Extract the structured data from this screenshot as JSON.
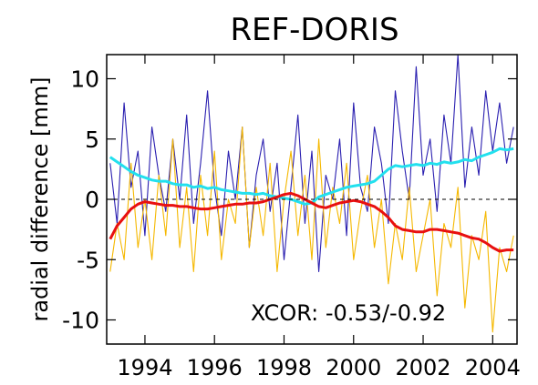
{
  "chart_data": {
    "type": "line",
    "title": "REF-DORIS",
    "ylabel": "radial difference [mm]",
    "annotation": "XCOR: -0.53/-0.92",
    "xlim": [
      1992.9,
      2004.7
    ],
    "xticks": [
      1994,
      1996,
      1998,
      2000,
      2002,
      2004
    ],
    "ylim": [
      -12,
      12
    ],
    "yticks": [
      -10,
      -5,
      0,
      5,
      10
    ],
    "reference_line": 0,
    "x": [
      1993.0,
      1993.2,
      1993.4,
      1993.6,
      1993.8,
      1994.0,
      1994.2,
      1994.4,
      1994.6,
      1994.8,
      1995.0,
      1995.2,
      1995.4,
      1995.6,
      1995.8,
      1996.0,
      1996.2,
      1996.4,
      1996.6,
      1996.8,
      1997.0,
      1997.2,
      1997.4,
      1997.6,
      1997.8,
      1998.0,
      1998.2,
      1998.4,
      1998.6,
      1998.8,
      1999.0,
      1999.2,
      1999.4,
      1999.6,
      1999.8,
      2000.0,
      2000.2,
      2000.4,
      2000.6,
      2000.8,
      2001.0,
      2001.2,
      2001.4,
      2001.6,
      2001.8,
      2002.0,
      2002.2,
      2002.4,
      2002.6,
      2002.8,
      2003.0,
      2003.2,
      2003.4,
      2003.6,
      2003.8,
      2004.0,
      2004.2,
      2004.4,
      2004.6
    ],
    "series": [
      {
        "color": "#2a1fb0",
        "values": [
          3,
          -2,
          8,
          1,
          4,
          -3,
          6,
          2,
          -1,
          5,
          0,
          7,
          -2,
          3,
          9,
          1,
          -3,
          4,
          0,
          6,
          -4,
          2,
          5,
          -1,
          3,
          -5,
          1,
          7,
          -2,
          4,
          -6,
          2,
          0,
          5,
          -3,
          8,
          1,
          -1,
          6,
          3,
          -2,
          9,
          4,
          0,
          11,
          2,
          5,
          -1,
          7,
          3,
          12,
          1,
          6,
          2,
          9,
          4,
          8,
          3,
          6
        ]
      },
      {
        "color": "#f5b800",
        "values": [
          -6,
          -2,
          -5,
          3,
          -4,
          0,
          -5,
          2,
          -3,
          5,
          -4,
          1,
          -6,
          2,
          -3,
          4,
          -5,
          0,
          -2,
          6,
          -4,
          1,
          -3,
          3,
          -6,
          0,
          4,
          -3,
          2,
          -5,
          5,
          -4,
          1,
          -2,
          3,
          -5,
          -1,
          2,
          -4,
          0,
          -7,
          -2,
          -5,
          1,
          -6,
          -3,
          0,
          -8,
          -2,
          -4,
          1,
          -9,
          -3,
          -5,
          -1,
          -11,
          -4,
          -6,
          -3
        ]
      },
      {
        "color": "#22e0ee",
        "values": [
          3.5,
          3.1,
          2.7,
          2.3,
          2.0,
          1.8,
          1.6,
          1.5,
          1.5,
          1.3,
          1.2,
          1.2,
          1.0,
          1.1,
          0.9,
          1.0,
          0.8,
          0.7,
          0.6,
          0.5,
          0.5,
          0.4,
          0.5,
          0.3,
          0.2,
          0.1,
          0.0,
          -0.2,
          -0.4,
          -0.3,
          0.2,
          0.4,
          0.6,
          0.8,
          1.0,
          1.1,
          1.2,
          1.3,
          1.5,
          2.0,
          2.5,
          2.8,
          2.7,
          2.8,
          2.9,
          2.8,
          3.0,
          2.9,
          3.1,
          3.0,
          3.1,
          3.3,
          3.2,
          3.5,
          3.7,
          3.9,
          4.2,
          4.1,
          4.2
        ]
      },
      {
        "color": "#e81010",
        "values": [
          -3.3,
          -2.2,
          -1.5,
          -0.8,
          -0.4,
          -0.2,
          -0.3,
          -0.4,
          -0.5,
          -0.5,
          -0.6,
          -0.6,
          -0.7,
          -0.8,
          -0.8,
          -0.7,
          -0.6,
          -0.5,
          -0.4,
          -0.4,
          -0.3,
          -0.3,
          -0.2,
          0.0,
          0.2,
          0.4,
          0.5,
          0.3,
          0.0,
          -0.3,
          -0.6,
          -0.7,
          -0.5,
          -0.3,
          -0.2,
          -0.1,
          -0.2,
          -0.4,
          -0.6,
          -1.0,
          -1.5,
          -2.2,
          -2.5,
          -2.6,
          -2.7,
          -2.7,
          -2.5,
          -2.5,
          -2.6,
          -2.7,
          -2.8,
          -3.0,
          -3.2,
          -3.3,
          -3.6,
          -4.0,
          -4.3,
          -4.2,
          -4.2
        ]
      }
    ]
  }
}
